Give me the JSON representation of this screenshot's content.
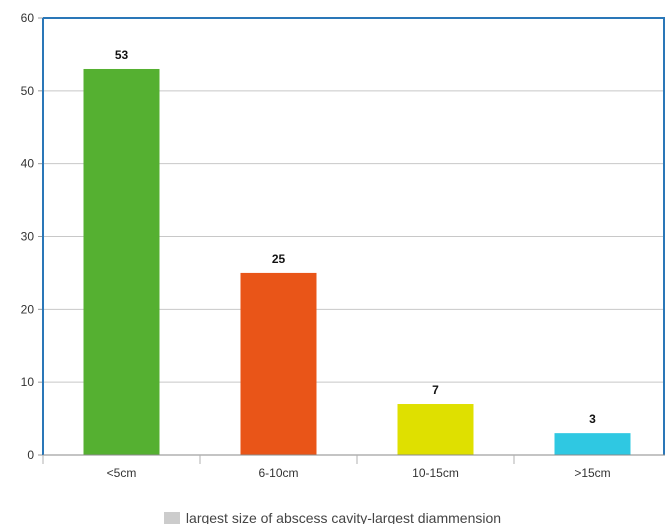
{
  "chart_data": {
    "type": "bar",
    "categories": [
      "<5cm",
      "6-10cm",
      "10-15cm",
      ">15cm"
    ],
    "values": [
      53,
      25,
      7,
      3
    ],
    "data_labels": [
      "53",
      "25",
      "7",
      "3"
    ],
    "colors": [
      "#55b031",
      "#e95518",
      "#dfe000",
      "#2fc8e2"
    ],
    "ylim": [
      0,
      60
    ],
    "yticks": [
      0,
      10,
      20,
      30,
      40,
      50,
      60
    ],
    "grid": true,
    "legend": {
      "label": "largest size of abscess cavity-largest diammension",
      "color": "#cccccc",
      "position": "bottom"
    }
  }
}
